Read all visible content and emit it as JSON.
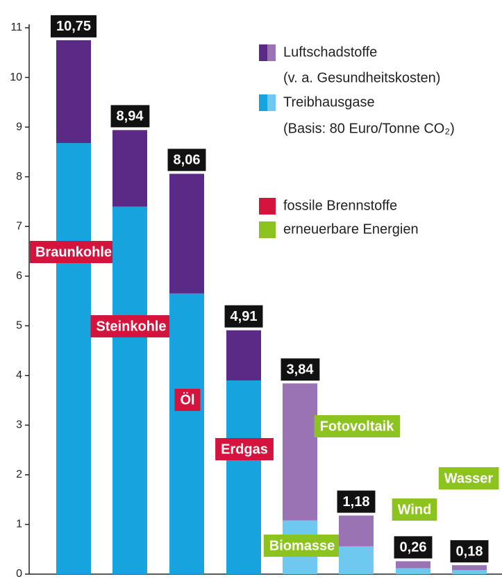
{
  "chart_data": {
    "type": "stacked_bar",
    "categories": [
      "Braunkohle",
      "Steinkohle",
      "Öl",
      "Erdgas",
      "Biomasse",
      "Fotovoltaik",
      "Wind",
      "Wasser"
    ],
    "category_group": [
      0,
      0,
      0,
      0,
      1,
      1,
      1,
      1
    ],
    "groups": [
      {
        "name": "fossile Brennstoffe",
        "color": "#d4143c"
      },
      {
        "name": "erneuerbare Energien",
        "color": "#8cc31e"
      }
    ],
    "series": [
      {
        "name": "Treibhausgase",
        "note": "(Basis: 80 Euro/Tonne CO₂)",
        "colors": [
          "#17a3dd",
          "#6fc8ef"
        ],
        "values": [
          8.68,
          7.4,
          5.65,
          3.9,
          1.08,
          0.56,
          0.12,
          0.08
        ]
      },
      {
        "name": "Luftschadstoffe",
        "note": "(v. a. Gesundheitskosten)",
        "colors": [
          "#5a2a86",
          "#9a73b5"
        ],
        "values": [
          2.07,
          1.54,
          2.41,
          1.01,
          2.76,
          0.62,
          0.14,
          0.1
        ]
      }
    ],
    "totals": [
      10.75,
      8.94,
      8.06,
      4.91,
      3.84,
      1.18,
      0.26,
      0.18
    ],
    "total_labels": [
      "10,75",
      "8,94",
      "8,06",
      "4,91",
      "3,84",
      "1,18",
      "0,26",
      "0,18"
    ],
    "ylim": [
      0,
      11
    ],
    "yticks": [
      0,
      1,
      2,
      3,
      4,
      5,
      6,
      7,
      8,
      9,
      10,
      11
    ]
  }
}
